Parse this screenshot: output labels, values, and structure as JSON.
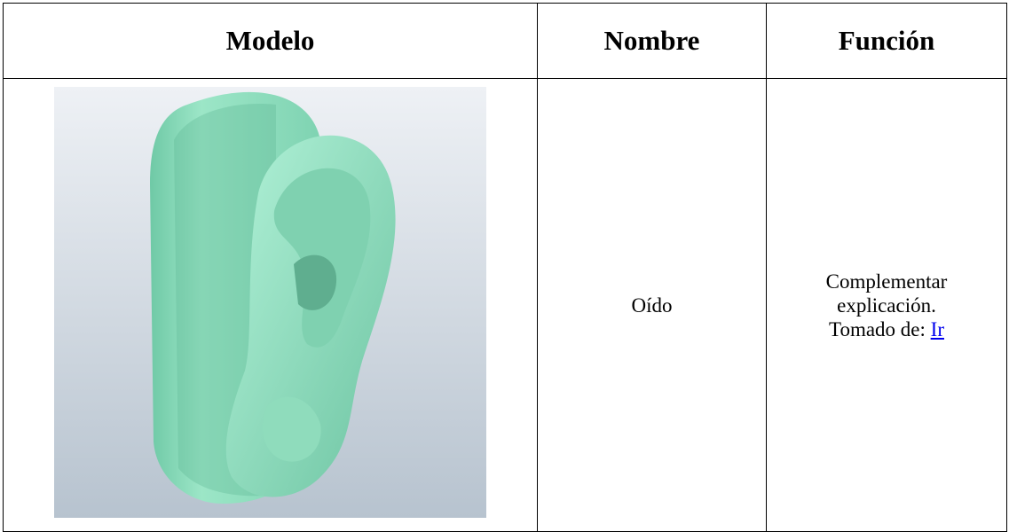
{
  "table": {
    "headers": [
      "Modelo",
      "Nombre",
      "Función"
    ],
    "rows": [
      [
        null,
        "Oído",
        {
          "lines": [
            "Complementar",
            "explicación.",
            "Tomado de:"
          ],
          "link": "Ir"
        }
      ]
    ]
  }
}
